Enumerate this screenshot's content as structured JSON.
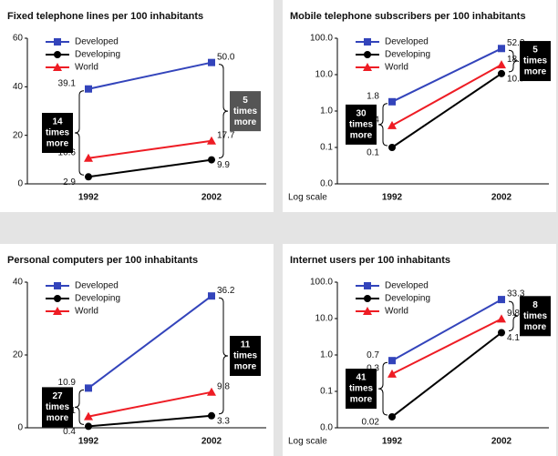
{
  "chart_data": [
    {
      "type": "line",
      "title": "Fixed telephone lines per 100 inhabitants",
      "categories": [
        "1992",
        "2002"
      ],
      "series": [
        {
          "name": "Developed",
          "color": "#3344bb",
          "marker": "square",
          "values": [
            39.1,
            50.0
          ],
          "value_labels": [
            "39.1",
            "50.0"
          ]
        },
        {
          "name": "Developing",
          "color": "#000000",
          "marker": "circle",
          "values": [
            2.9,
            9.9
          ]
        },
        {
          "name": "World",
          "color": "#ee1c24",
          "marker": "triangle",
          "values": [
            10.6,
            17.7
          ]
        }
      ],
      "ylim": [
        0,
        60
      ],
      "yticks": [
        0,
        20,
        40,
        60
      ],
      "log": false,
      "annotations": [
        {
          "category": 0,
          "lines": [
            "14",
            "times",
            "more"
          ],
          "color": "#000000"
        },
        {
          "category": 1,
          "lines": [
            "5",
            "times",
            "more"
          ],
          "color": "#555555"
        }
      ]
    },
    {
      "type": "line",
      "title": "Mobile telephone subscribers per 100 inhabitants",
      "categories": [
        "1992",
        "2002"
      ],
      "series": [
        {
          "name": "Developed",
          "color": "#3344bb",
          "marker": "square",
          "values": [
            1.8,
            52.2
          ]
        },
        {
          "name": "Developing",
          "color": "#000000",
          "marker": "circle",
          "values": [
            0.1,
            10.7
          ]
        },
        {
          "name": "World",
          "color": "#ee1c24",
          "marker": "triangle",
          "values": [
            0.4,
            18.7
          ]
        }
      ],
      "ylim": [
        0.01,
        100
      ],
      "yticks": [
        {
          "value": 0.01,
          "label": "0.0"
        },
        {
          "value": 0.1,
          "label": "0.1"
        },
        {
          "value": 1,
          "label": "1.0"
        },
        {
          "value": 10,
          "label": "10.0"
        },
        {
          "value": 100,
          "label": "100.0"
        }
      ],
      "log": true,
      "scale_note": "Log scale",
      "annotations": [
        {
          "category": 0,
          "lines": [
            "30",
            "times",
            "more"
          ],
          "color": "#000000"
        },
        {
          "category": 1,
          "lines": [
            "5",
            "times",
            "more"
          ],
          "color": "#000000"
        }
      ]
    },
    {
      "type": "line",
      "title": "Personal computers per 100 inhabitants",
      "categories": [
        "1992",
        "2002"
      ],
      "series": [
        {
          "name": "Developed",
          "color": "#3344bb",
          "marker": "square",
          "values": [
            10.9,
            36.2
          ]
        },
        {
          "name": "Developing",
          "color": "#000000",
          "marker": "circle",
          "values": [
            0.4,
            3.3
          ]
        },
        {
          "name": "World",
          "color": "#ee1c24",
          "marker": "triangle",
          "values": [
            3.1,
            9.8
          ]
        }
      ],
      "ylim": [
        0,
        40
      ],
      "yticks": [
        0,
        20,
        40
      ],
      "log": false,
      "annotations": [
        {
          "category": 0,
          "lines": [
            "27",
            "times",
            "more"
          ],
          "color": "#000000"
        },
        {
          "category": 1,
          "lines": [
            "11",
            "times",
            "more"
          ],
          "color": "#000000"
        }
      ]
    },
    {
      "type": "line",
      "title": "Internet users per 100 inhabitants",
      "categories": [
        "1992",
        "2002"
      ],
      "series": [
        {
          "name": "Developed",
          "color": "#3344bb",
          "marker": "square",
          "values": [
            0.7,
            33.3
          ]
        },
        {
          "name": "Developing",
          "color": "#000000",
          "marker": "circle",
          "values": [
            0.02,
            4.1
          ]
        },
        {
          "name": "World",
          "color": "#ee1c24",
          "marker": "triangle",
          "values": [
            0.3,
            9.8
          ]
        }
      ],
      "ylim": [
        0.01,
        100
      ],
      "yticks": [
        {
          "value": 0.01,
          "label": "0.0"
        },
        {
          "value": 0.1,
          "label": "0.1"
        },
        {
          "value": 1,
          "label": "1.0"
        },
        {
          "value": 10,
          "label": "10.0"
        },
        {
          "value": 100,
          "label": "100.0"
        }
      ],
      "log": true,
      "scale_note": "Log scale",
      "annotations": [
        {
          "category": 0,
          "lines": [
            "41",
            "times",
            "more"
          ],
          "color": "#000000"
        },
        {
          "category": 1,
          "lines": [
            "8",
            "times",
            "more"
          ],
          "color": "#000000"
        }
      ]
    }
  ]
}
